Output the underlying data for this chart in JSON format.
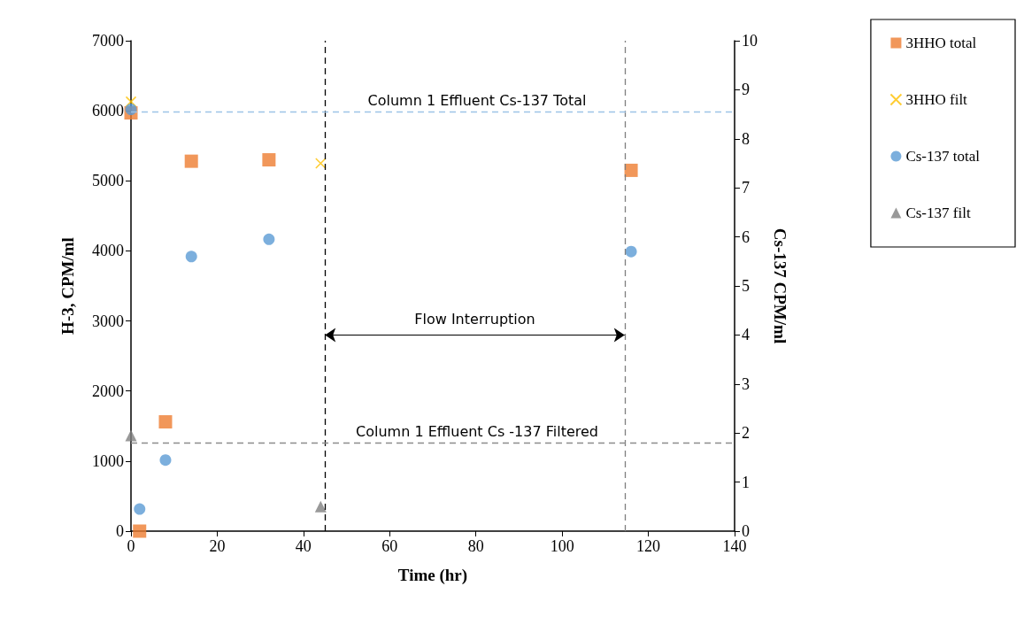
{
  "chart_data": {
    "type": "scatter",
    "xlabel": "Time (hr)",
    "ylabel": "H-3, CPM/ml",
    "y2label": "Cs-137 CPM/ml",
    "xlim": [
      0,
      140
    ],
    "xticks": [
      0,
      20,
      40,
      60,
      80,
      100,
      120,
      140
    ],
    "ylim": [
      0,
      7000
    ],
    "yticks": [
      0,
      1000,
      2000,
      3000,
      4000,
      5000,
      6000,
      7000
    ],
    "y2lim": [
      0,
      10
    ],
    "y2ticks": [
      0,
      1,
      2,
      3,
      4,
      5,
      6,
      7,
      8,
      9,
      10
    ],
    "grid": false,
    "legend": "right",
    "series": [
      {
        "name": "3HHO total",
        "color": "#ed7d31",
        "marker": "square",
        "x": [
          0,
          2,
          8,
          14,
          32,
          116
        ],
        "values": [
          5970,
          0,
          1560,
          5280,
          5300,
          5150
        ]
      },
      {
        "name": "3HHO filt",
        "color": "#ffc000",
        "marker": "cross",
        "x": [
          0,
          44
        ],
        "values": [
          6130,
          5250
        ]
      },
      {
        "name": "Cs-137 total",
        "color": "#5b9bd5",
        "marker": "circle",
        "axis": "y2",
        "x": [
          0,
          2,
          8,
          14,
          32,
          116
        ],
        "values": [
          8.6,
          0.45,
          1.45,
          5.6,
          5.95,
          5.7
        ]
      },
      {
        "name": "Cs-137 filt",
        "color": "#7f7f7f",
        "marker": "triangle",
        "axis": "y2",
        "x": [
          0,
          44
        ],
        "values": [
          1.95,
          0.5
        ]
      }
    ],
    "ref_lines": [
      {
        "axis": "y2",
        "value": 8.55,
        "label": "Column 1 Effluent Cs-137 Total",
        "color": "#9dc3e6",
        "line_style": "dashed"
      },
      {
        "axis": "y2",
        "value": 1.8,
        "label": "Column 1 Effluent Cs -137 Filtered",
        "color": "#8c8c8c",
        "line_style": "dashed"
      },
      {
        "axis": "x",
        "value": 45,
        "label": null,
        "color": "#000000",
        "line_style": "dashed"
      },
      {
        "axis": "x",
        "value": 114.5,
        "label": null,
        "color": "#7f7f7f",
        "line_style": "dashed"
      }
    ],
    "annotations": [
      "Flow Interruption"
    ]
  }
}
